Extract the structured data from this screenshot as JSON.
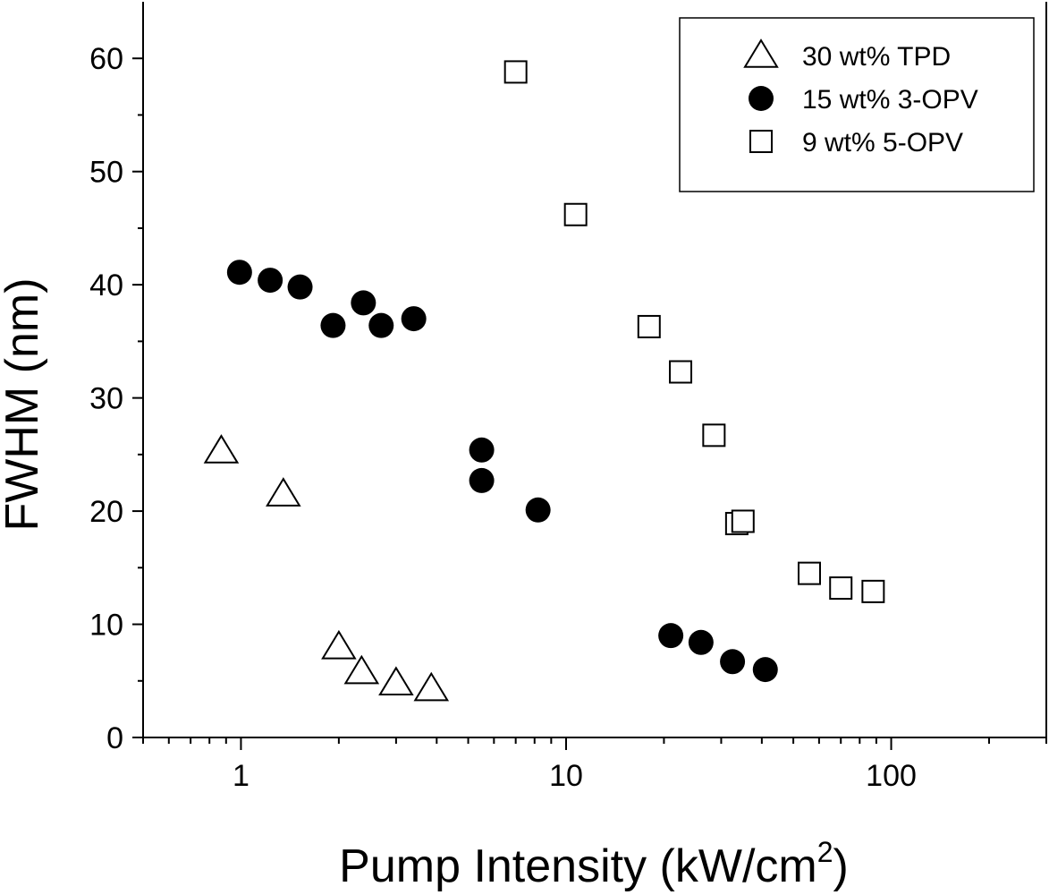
{
  "chart_data": {
    "type": "scatter",
    "title": "",
    "xlabel": "Pump Intensity (kW/cm",
    "xlabel_sup": "2",
    "xlabel_end": ")",
    "ylabel": "FWHM (nm)",
    "xscale": "log",
    "xlim": [
      0.5,
      300
    ],
    "ylim": [
      0,
      65
    ],
    "x_tick_labels": [
      "1",
      "10",
      "100"
    ],
    "y_tick_labels": [
      "0",
      "10",
      "20",
      "30",
      "40",
      "50",
      "60"
    ],
    "legend_position": "top-right",
    "series": [
      {
        "name": "30 wt% TPD",
        "marker": "triangle-open",
        "points": [
          {
            "x": 0.87,
            "y": 25.3
          },
          {
            "x": 1.35,
            "y": 21.5
          },
          {
            "x": 2.0,
            "y": 8.0
          },
          {
            "x": 2.35,
            "y": 5.8
          },
          {
            "x": 3.0,
            "y": 4.8
          },
          {
            "x": 3.85,
            "y": 4.3
          }
        ]
      },
      {
        "name": "15 wt% 3-OPV",
        "marker": "circle-filled",
        "points": [
          {
            "x": 0.99,
            "y": 41.1
          },
          {
            "x": 1.23,
            "y": 40.4
          },
          {
            "x": 1.52,
            "y": 39.8
          },
          {
            "x": 1.92,
            "y": 36.4
          },
          {
            "x": 2.38,
            "y": 38.4
          },
          {
            "x": 2.7,
            "y": 36.4
          },
          {
            "x": 3.4,
            "y": 37.0
          },
          {
            "x": 5.5,
            "y": 25.4
          },
          {
            "x": 5.5,
            "y": 22.7
          },
          {
            "x": 8.2,
            "y": 20.1
          },
          {
            "x": 21.0,
            "y": 9.0
          },
          {
            "x": 26.0,
            "y": 8.4
          },
          {
            "x": 32.5,
            "y": 6.7
          },
          {
            "x": 41.0,
            "y": 6.0
          }
        ]
      },
      {
        "name": "9 wt% 5-OPV",
        "marker": "square-open",
        "points": [
          {
            "x": 7.0,
            "y": 58.8
          },
          {
            "x": 10.7,
            "y": 46.2
          },
          {
            "x": 18.0,
            "y": 36.3
          },
          {
            "x": 22.5,
            "y": 32.3
          },
          {
            "x": 28.5,
            "y": 26.7
          },
          {
            "x": 33.5,
            "y": 18.9
          },
          {
            "x": 35.0,
            "y": 19.1
          },
          {
            "x": 56.0,
            "y": 14.5
          },
          {
            "x": 70.0,
            "y": 13.2
          },
          {
            "x": 88.0,
            "y": 12.9
          }
        ]
      }
    ]
  }
}
